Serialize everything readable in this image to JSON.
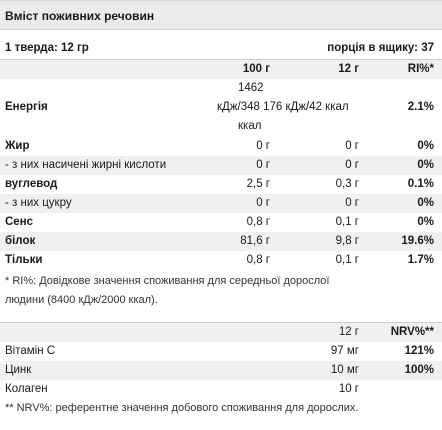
{
  "title": "Вміст поживних речовин",
  "serving": {
    "left": "1 тверда: 12 гр",
    "right": "порція в ящику: 37"
  },
  "header": {
    "col1": "100 г",
    "col2": "12 г",
    "col3": "RI%*"
  },
  "energy": {
    "label": "Енергія",
    "v100_line1": "1462",
    "v100_line2": "кДж/348 176 кДж/42 ккал",
    "v100_line3": "ккал",
    "ri": "2.1%"
  },
  "nutrients": [
    {
      "label": "Жир",
      "bold": true,
      "v100": "0 г",
      "v12": "0 г",
      "ri": "0%"
    },
    {
      "label": "- з них насичені жирні кислоти",
      "bold": false,
      "v100": "0 г",
      "v12": "0 г",
      "ri": "0%"
    },
    {
      "label": "вуглевод",
      "bold": true,
      "v100": "2,5 г",
      "v12": "0,3 г",
      "ri": "0.1%"
    },
    {
      "label": "- з них цукру",
      "bold": false,
      "v100": "0 г",
      "v12": "0 г",
      "ri": "0%"
    },
    {
      "label": "Сенс",
      "bold": true,
      "v100": "0,8 г",
      "v12": "0,1 г",
      "ri": "0%"
    },
    {
      "label": "білок",
      "bold": true,
      "v100": "81,6 г",
      "v12": "9,8 г",
      "ri": "19.6%"
    },
    {
      "label": "Тільки",
      "bold": true,
      "v100": "0,8 г",
      "v12": "0,1 г",
      "ri": "1.7%"
    }
  ],
  "ri_note_line1": "* RI%: Довідкове значення споживання для середньої дорослої",
  "ri_note_line2": "людини (8400 кДж/2000 ккал).",
  "vitamins_header": {
    "col": "12 г",
    "nrv": "NRV%**"
  },
  "vitamins": [
    {
      "label": "Вітамін С",
      "value": "97 мг",
      "nrv": "121%"
    },
    {
      "label": "Цинк",
      "value": "10 мг",
      "nrv": "100%"
    },
    {
      "label": "Колаген",
      "value": "10 г",
      "nrv": ""
    }
  ],
  "nrv_note": "** NRV%: референтне значення добового споживання для дорослих."
}
